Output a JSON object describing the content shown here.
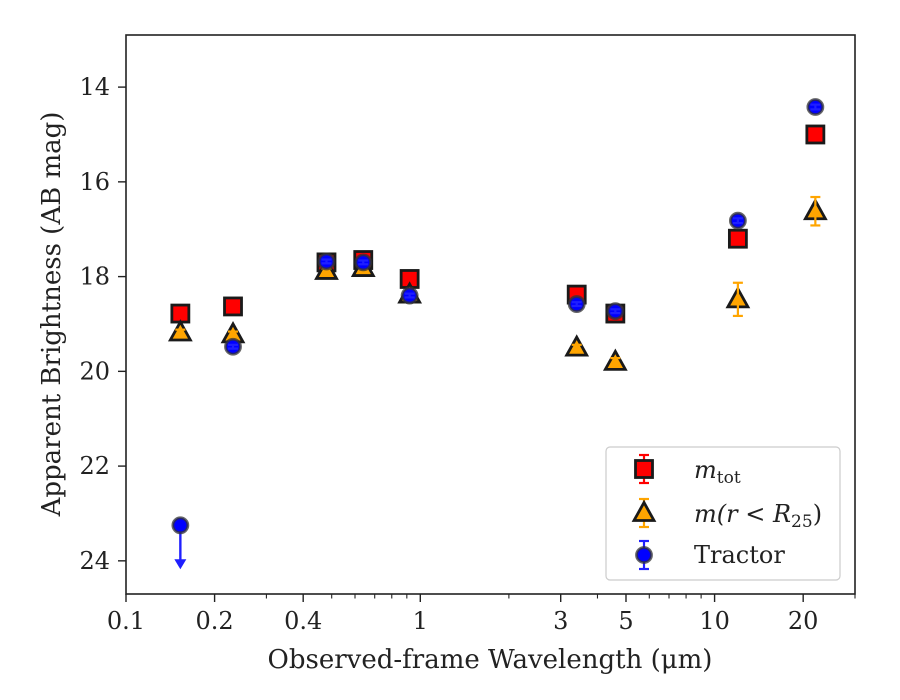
{
  "chart_data": {
    "type": "scatter",
    "xlabel": "Observed-frame Wavelength (μm)",
    "ylabel": "Apparent Brightness (AB mag)",
    "xscale": "log",
    "xlim": [
      0.1,
      30
    ],
    "ylim": [
      24.7,
      12.9
    ],
    "y_inverted": true,
    "x_ticks": [
      0.1,
      0.2,
      0.4,
      1,
      3,
      5,
      10,
      20
    ],
    "x_tick_labels": [
      "0.1",
      "0.2",
      "0.4",
      "1",
      "3",
      "5",
      "10",
      "20"
    ],
    "y_ticks": [
      14,
      16,
      18,
      20,
      22,
      24
    ],
    "y_tick_labels": [
      "14",
      "16",
      "18",
      "20",
      "22",
      "24"
    ],
    "grid": false,
    "legend": {
      "placement": "lower-right",
      "entries": [
        {
          "key": "mtot",
          "base": "m",
          "sub": "tot"
        },
        {
          "key": "mr25",
          "base": "m",
          "paren_open": "(r < ",
          "R": "R",
          "sub": "25",
          "paren_close": ")"
        },
        {
          "key": "tractor",
          "label": "Tractor"
        }
      ]
    },
    "series": [
      {
        "key": "mtot",
        "marker": "square",
        "color": "#ff0000",
        "error_color": "#ff0000",
        "points": [
          {
            "x": 0.153,
            "y": 18.78,
            "err": 0.05
          },
          {
            "x": 0.231,
            "y": 18.63,
            "err": 0.05
          },
          {
            "x": 0.48,
            "y": 17.7,
            "err": 0.04
          },
          {
            "x": 0.64,
            "y": 17.65,
            "err": 0.04
          },
          {
            "x": 0.92,
            "y": 18.05,
            "err": 0.04
          },
          {
            "x": 3.4,
            "y": 18.38,
            "err": 0.04
          },
          {
            "x": 4.6,
            "y": 18.78,
            "err": 0.05
          },
          {
            "x": 12.0,
            "y": 17.2,
            "err": 0.05
          },
          {
            "x": 22.0,
            "y": 15.0,
            "err": 0.05
          }
        ]
      },
      {
        "key": "mr25",
        "marker": "triangle",
        "color": "#ffa500",
        "error_color": "#ffa500",
        "points": [
          {
            "x": 0.153,
            "y": 19.18,
            "err": 0.06
          },
          {
            "x": 0.231,
            "y": 19.22,
            "err": 0.06
          },
          {
            "x": 0.48,
            "y": 17.88,
            "err": 0.05
          },
          {
            "x": 0.64,
            "y": 17.82,
            "err": 0.05
          },
          {
            "x": 0.92,
            "y": 18.38,
            "err": 0.05
          },
          {
            "x": 3.4,
            "y": 19.5,
            "err": 0.06
          },
          {
            "x": 4.6,
            "y": 19.8,
            "err": 0.08
          },
          {
            "x": 12.0,
            "y": 18.48,
            "err": 0.35
          },
          {
            "x": 22.0,
            "y": 16.62,
            "err": 0.3
          }
        ]
      },
      {
        "key": "tractor",
        "marker": "circle",
        "color": "#0000ff",
        "error_color": "#1f1fff",
        "points": [
          {
            "x": 0.153,
            "y": 23.25,
            "err": 0.0,
            "upper_limit": true
          },
          {
            "x": 0.231,
            "y": 19.48,
            "err": 0.04
          },
          {
            "x": 0.48,
            "y": 17.68,
            "err": 0.04
          },
          {
            "x": 0.64,
            "y": 17.7,
            "err": 0.04
          },
          {
            "x": 0.92,
            "y": 18.4,
            "err": 0.04
          },
          {
            "x": 3.4,
            "y": 18.58,
            "err": 0.04
          },
          {
            "x": 4.6,
            "y": 18.73,
            "err": 0.04
          },
          {
            "x": 12.0,
            "y": 16.82,
            "err": 0.05
          },
          {
            "x": 22.0,
            "y": 14.42,
            "err": 0.05
          }
        ]
      }
    ]
  }
}
